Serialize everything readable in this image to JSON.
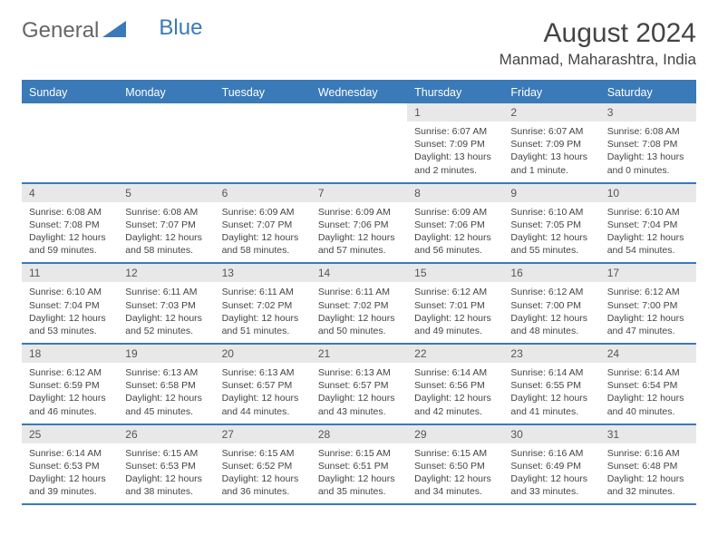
{
  "logo": {
    "text1": "General",
    "text2": "Blue"
  },
  "title": "August 2024",
  "location": "Manmad, Maharashtra, India",
  "colors": {
    "header_bg": "#3a7ab8",
    "header_text": "#ffffff",
    "daynum_bg": "#e8e8e8",
    "border": "#3a7ab8",
    "body_text": "#444444",
    "page_bg": "#ffffff"
  },
  "fonts": {
    "title_size": 30,
    "location_size": 17,
    "weekday_size": 12.5,
    "daynum_size": 12,
    "body_size": 10.5
  },
  "layout": {
    "cols": 7,
    "rows": 5,
    "day_min_height": 80
  },
  "weekdays": [
    "Sunday",
    "Monday",
    "Tuesday",
    "Wednesday",
    "Thursday",
    "Friday",
    "Saturday"
  ],
  "weeks": [
    [
      {
        "empty": true
      },
      {
        "empty": true
      },
      {
        "empty": true
      },
      {
        "empty": true
      },
      {
        "num": "1",
        "sunrise": "Sunrise: 6:07 AM",
        "sunset": "Sunset: 7:09 PM",
        "daylight": "Daylight: 13 hours and 2 minutes."
      },
      {
        "num": "2",
        "sunrise": "Sunrise: 6:07 AM",
        "sunset": "Sunset: 7:09 PM",
        "daylight": "Daylight: 13 hours and 1 minute."
      },
      {
        "num": "3",
        "sunrise": "Sunrise: 6:08 AM",
        "sunset": "Sunset: 7:08 PM",
        "daylight": "Daylight: 13 hours and 0 minutes."
      }
    ],
    [
      {
        "num": "4",
        "sunrise": "Sunrise: 6:08 AM",
        "sunset": "Sunset: 7:08 PM",
        "daylight": "Daylight: 12 hours and 59 minutes."
      },
      {
        "num": "5",
        "sunrise": "Sunrise: 6:08 AM",
        "sunset": "Sunset: 7:07 PM",
        "daylight": "Daylight: 12 hours and 58 minutes."
      },
      {
        "num": "6",
        "sunrise": "Sunrise: 6:09 AM",
        "sunset": "Sunset: 7:07 PM",
        "daylight": "Daylight: 12 hours and 58 minutes."
      },
      {
        "num": "7",
        "sunrise": "Sunrise: 6:09 AM",
        "sunset": "Sunset: 7:06 PM",
        "daylight": "Daylight: 12 hours and 57 minutes."
      },
      {
        "num": "8",
        "sunrise": "Sunrise: 6:09 AM",
        "sunset": "Sunset: 7:06 PM",
        "daylight": "Daylight: 12 hours and 56 minutes."
      },
      {
        "num": "9",
        "sunrise": "Sunrise: 6:10 AM",
        "sunset": "Sunset: 7:05 PM",
        "daylight": "Daylight: 12 hours and 55 minutes."
      },
      {
        "num": "10",
        "sunrise": "Sunrise: 6:10 AM",
        "sunset": "Sunset: 7:04 PM",
        "daylight": "Daylight: 12 hours and 54 minutes."
      }
    ],
    [
      {
        "num": "11",
        "sunrise": "Sunrise: 6:10 AM",
        "sunset": "Sunset: 7:04 PM",
        "daylight": "Daylight: 12 hours and 53 minutes."
      },
      {
        "num": "12",
        "sunrise": "Sunrise: 6:11 AM",
        "sunset": "Sunset: 7:03 PM",
        "daylight": "Daylight: 12 hours and 52 minutes."
      },
      {
        "num": "13",
        "sunrise": "Sunrise: 6:11 AM",
        "sunset": "Sunset: 7:02 PM",
        "daylight": "Daylight: 12 hours and 51 minutes."
      },
      {
        "num": "14",
        "sunrise": "Sunrise: 6:11 AM",
        "sunset": "Sunset: 7:02 PM",
        "daylight": "Daylight: 12 hours and 50 minutes."
      },
      {
        "num": "15",
        "sunrise": "Sunrise: 6:12 AM",
        "sunset": "Sunset: 7:01 PM",
        "daylight": "Daylight: 12 hours and 49 minutes."
      },
      {
        "num": "16",
        "sunrise": "Sunrise: 6:12 AM",
        "sunset": "Sunset: 7:00 PM",
        "daylight": "Daylight: 12 hours and 48 minutes."
      },
      {
        "num": "17",
        "sunrise": "Sunrise: 6:12 AM",
        "sunset": "Sunset: 7:00 PM",
        "daylight": "Daylight: 12 hours and 47 minutes."
      }
    ],
    [
      {
        "num": "18",
        "sunrise": "Sunrise: 6:12 AM",
        "sunset": "Sunset: 6:59 PM",
        "daylight": "Daylight: 12 hours and 46 minutes."
      },
      {
        "num": "19",
        "sunrise": "Sunrise: 6:13 AM",
        "sunset": "Sunset: 6:58 PM",
        "daylight": "Daylight: 12 hours and 45 minutes."
      },
      {
        "num": "20",
        "sunrise": "Sunrise: 6:13 AM",
        "sunset": "Sunset: 6:57 PM",
        "daylight": "Daylight: 12 hours and 44 minutes."
      },
      {
        "num": "21",
        "sunrise": "Sunrise: 6:13 AM",
        "sunset": "Sunset: 6:57 PM",
        "daylight": "Daylight: 12 hours and 43 minutes."
      },
      {
        "num": "22",
        "sunrise": "Sunrise: 6:14 AM",
        "sunset": "Sunset: 6:56 PM",
        "daylight": "Daylight: 12 hours and 42 minutes."
      },
      {
        "num": "23",
        "sunrise": "Sunrise: 6:14 AM",
        "sunset": "Sunset: 6:55 PM",
        "daylight": "Daylight: 12 hours and 41 minutes."
      },
      {
        "num": "24",
        "sunrise": "Sunrise: 6:14 AM",
        "sunset": "Sunset: 6:54 PM",
        "daylight": "Daylight: 12 hours and 40 minutes."
      }
    ],
    [
      {
        "num": "25",
        "sunrise": "Sunrise: 6:14 AM",
        "sunset": "Sunset: 6:53 PM",
        "daylight": "Daylight: 12 hours and 39 minutes."
      },
      {
        "num": "26",
        "sunrise": "Sunrise: 6:15 AM",
        "sunset": "Sunset: 6:53 PM",
        "daylight": "Daylight: 12 hours and 38 minutes."
      },
      {
        "num": "27",
        "sunrise": "Sunrise: 6:15 AM",
        "sunset": "Sunset: 6:52 PM",
        "daylight": "Daylight: 12 hours and 36 minutes."
      },
      {
        "num": "28",
        "sunrise": "Sunrise: 6:15 AM",
        "sunset": "Sunset: 6:51 PM",
        "daylight": "Daylight: 12 hours and 35 minutes."
      },
      {
        "num": "29",
        "sunrise": "Sunrise: 6:15 AM",
        "sunset": "Sunset: 6:50 PM",
        "daylight": "Daylight: 12 hours and 34 minutes."
      },
      {
        "num": "30",
        "sunrise": "Sunrise: 6:16 AM",
        "sunset": "Sunset: 6:49 PM",
        "daylight": "Daylight: 12 hours and 33 minutes."
      },
      {
        "num": "31",
        "sunrise": "Sunrise: 6:16 AM",
        "sunset": "Sunset: 6:48 PM",
        "daylight": "Daylight: 12 hours and 32 minutes."
      }
    ]
  ]
}
